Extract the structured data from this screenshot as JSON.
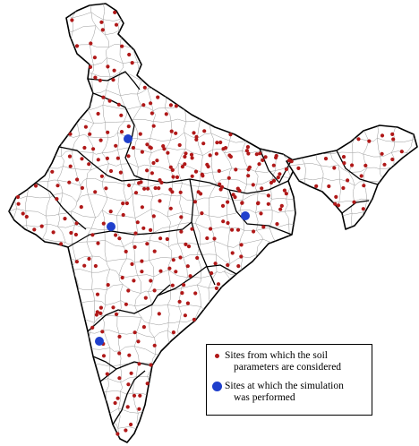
{
  "map": {
    "outline_color": "#000000",
    "district_color": "#9a9a9a",
    "land_color": "#ffffff",
    "soil_site_color": "#b01818",
    "simulation_site_color": "#1f3fcc",
    "simulation_sites_count": 4
  },
  "legend": {
    "soil_sites": {
      "line1": "Sites from which the soil",
      "line2": "parameters are considered",
      "icon": "small-red-dot-icon"
    },
    "simulation_sites": {
      "line1": "Sites at which the simulation",
      "line2": "was performed",
      "icon": "large-blue-dot-icon"
    }
  }
}
